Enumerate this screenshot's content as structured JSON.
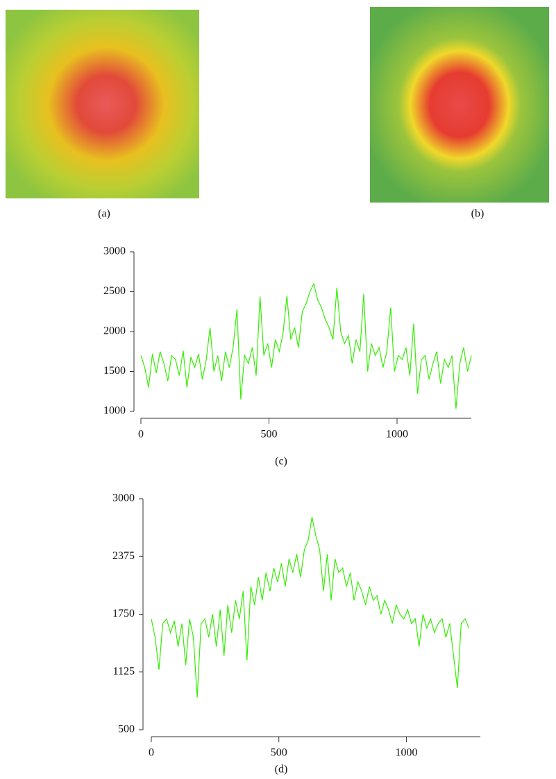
{
  "images": [
    {
      "caption": "(a)"
    },
    {
      "caption": "(b)"
    }
  ],
  "chart_data": [
    {
      "type": "line",
      "caption": "(c)",
      "xlim": [
        0,
        1290
      ],
      "ylim": [
        1000,
        3000
      ],
      "xticks": [
        0,
        500,
        1000
      ],
      "yticks": [
        1000,
        1500,
        2000,
        2500,
        3000
      ],
      "x": [
        0,
        15,
        30,
        45,
        60,
        75,
        90,
        105,
        120,
        135,
        150,
        165,
        180,
        195,
        210,
        225,
        240,
        255,
        270,
        285,
        300,
        315,
        330,
        345,
        360,
        375,
        390,
        405,
        420,
        435,
        450,
        465,
        480,
        495,
        510,
        525,
        540,
        555,
        570,
        585,
        600,
        615,
        630,
        645,
        660,
        675,
        690,
        705,
        720,
        735,
        750,
        765,
        780,
        795,
        810,
        825,
        840,
        855,
        870,
        885,
        900,
        915,
        930,
        945,
        960,
        975,
        990,
        1005,
        1020,
        1035,
        1050,
        1065,
        1080,
        1095,
        1110,
        1125,
        1140,
        1155,
        1170,
        1185,
        1200,
        1215,
        1230,
        1245,
        1260,
        1275,
        1290
      ],
      "series": [
        {
          "color": "#33ee00",
          "values": [
            1700,
            1550,
            1300,
            1720,
            1480,
            1750,
            1600,
            1380,
            1700,
            1650,
            1450,
            1760,
            1300,
            1680,
            1550,
            1720,
            1400,
            1650,
            2050,
            1500,
            1700,
            1380,
            1750,
            1550,
            1800,
            2280,
            1150,
            1700,
            1600,
            1800,
            1450,
            2440,
            1700,
            1850,
            1550,
            1900,
            1750,
            1980,
            2450,
            1900,
            2050,
            1800,
            2250,
            2350,
            2500,
            2600,
            2400,
            2300,
            2150,
            2050,
            1900,
            2550,
            2000,
            1850,
            1950,
            1600,
            1900,
            1750,
            2470,
            1500,
            1850,
            1700,
            1800,
            1550,
            1750,
            2300,
            1500,
            1700,
            1650,
            1800,
            1450,
            2100,
            1220,
            1650,
            1700,
            1400,
            1600,
            1750,
            1350,
            1650,
            1550,
            1700,
            1030,
            1600,
            1800,
            1500,
            1700
          ]
        }
      ]
    },
    {
      "type": "line",
      "caption": "(d)",
      "xlim": [
        0,
        1290
      ],
      "ylim": [
        500,
        3000
      ],
      "xticks": [
        0,
        500,
        1000
      ],
      "yticks": [
        500,
        1125,
        1750,
        2375,
        3000
      ],
      "x": [
        0,
        15,
        30,
        45,
        60,
        75,
        90,
        105,
        120,
        135,
        150,
        165,
        180,
        195,
        210,
        225,
        240,
        255,
        270,
        285,
        300,
        315,
        330,
        345,
        360,
        375,
        390,
        405,
        420,
        435,
        450,
        465,
        480,
        495,
        510,
        525,
        540,
        555,
        570,
        585,
        600,
        615,
        630,
        645,
        660,
        675,
        690,
        705,
        720,
        735,
        750,
        765,
        780,
        795,
        810,
        825,
        840,
        855,
        870,
        885,
        900,
        915,
        930,
        945,
        960,
        975,
        990,
        1005,
        1020,
        1035,
        1050,
        1065,
        1080,
        1095,
        1110,
        1125,
        1140,
        1155,
        1170,
        1185,
        1200,
        1215,
        1230,
        1245
      ],
      "series": [
        {
          "color": "#33ee00",
          "values": [
            1700,
            1500,
            1150,
            1650,
            1700,
            1550,
            1680,
            1400,
            1650,
            1200,
            1700,
            1500,
            850,
            1650,
            1700,
            1500,
            1750,
            1400,
            1800,
            1300,
            1850,
            1550,
            1900,
            1700,
            2000,
            1250,
            2050,
            1850,
            2150,
            1900,
            2200,
            2000,
            2250,
            2100,
            2300,
            2050,
            2350,
            2200,
            2400,
            2150,
            2450,
            2550,
            2800,
            2600,
            2450,
            2000,
            2400,
            1900,
            2350,
            2200,
            2250,
            2050,
            2200,
            1900,
            2100,
            2000,
            1850,
            2050,
            1900,
            1950,
            1750,
            1900,
            1800,
            1650,
            1850,
            1750,
            1700,
            1800,
            1650,
            1700,
            1400,
            1750,
            1600,
            1700,
            1550,
            1650,
            1700,
            1500,
            1650,
            1300,
            950,
            1650,
            1700,
            1600
          ]
        }
      ]
    }
  ]
}
